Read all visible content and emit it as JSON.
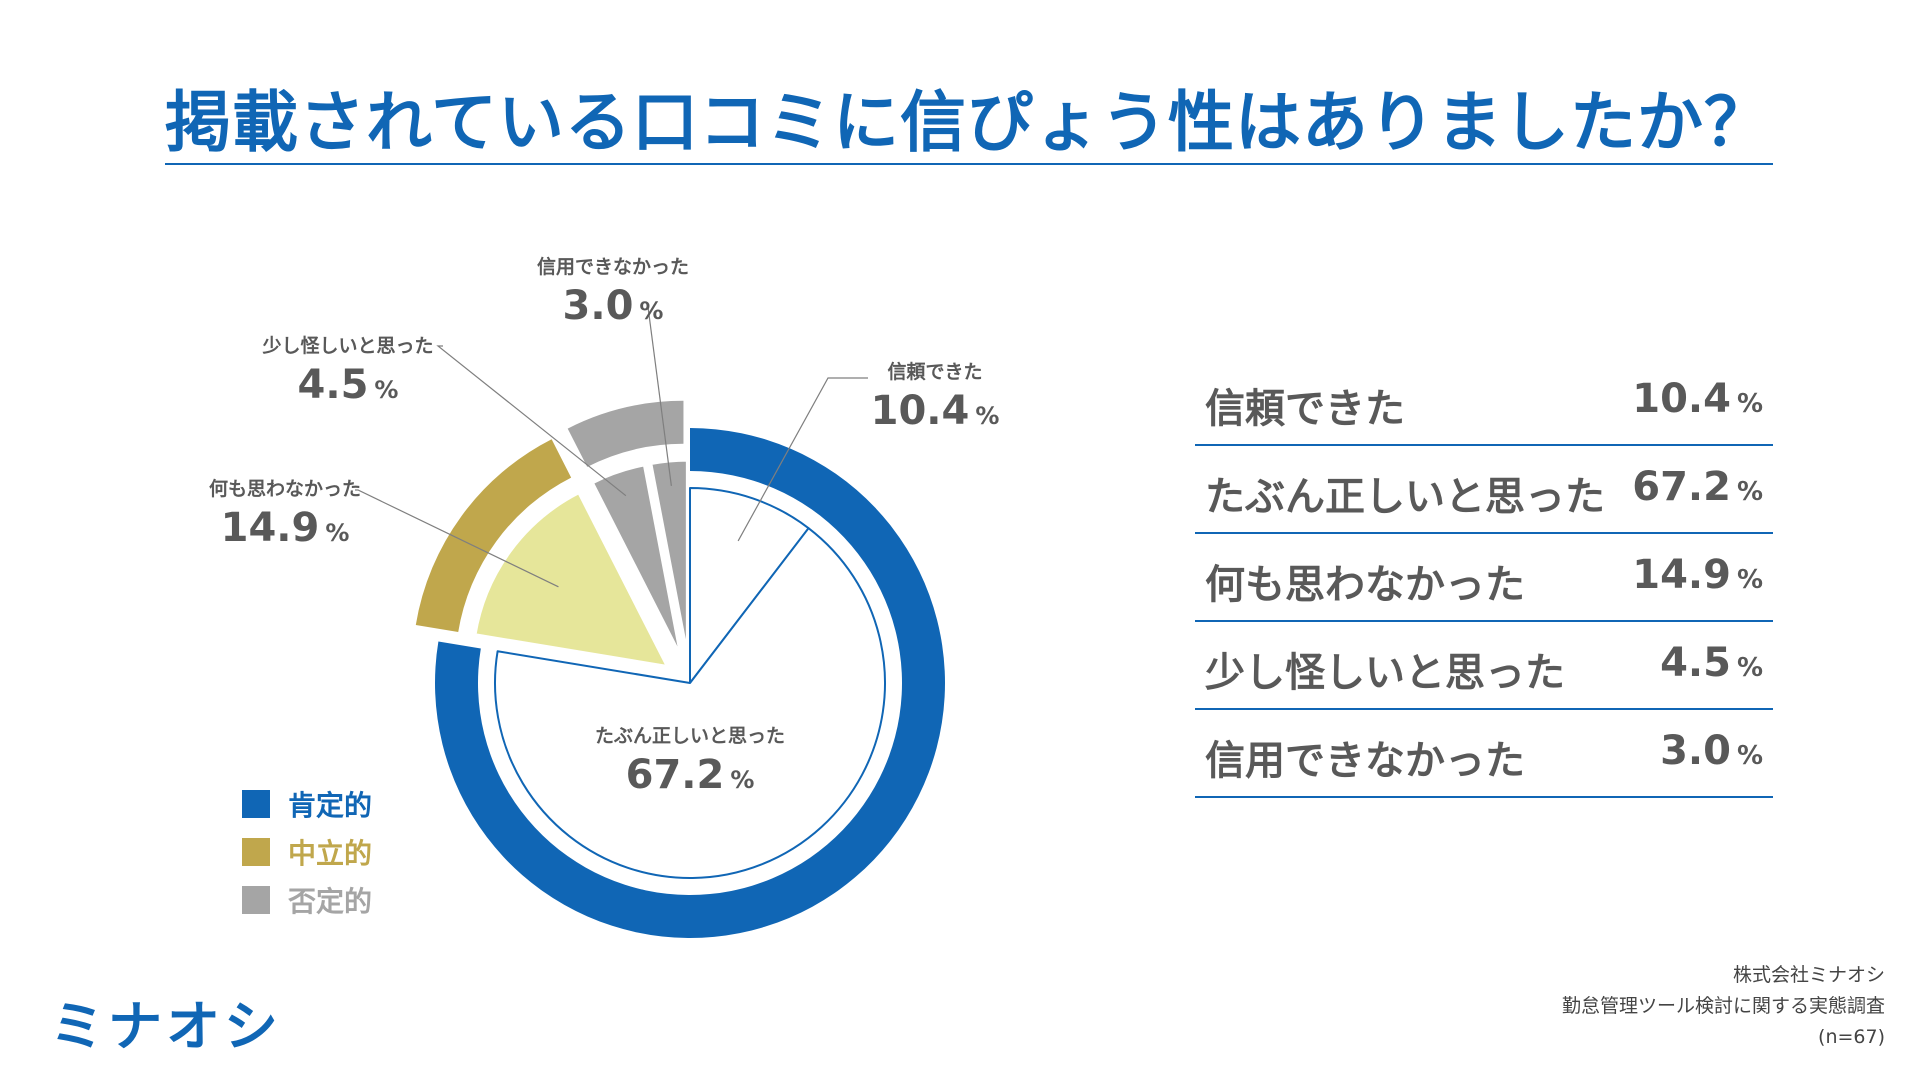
{
  "title": "掲載されている口コミに信ぴょう性はありましたか？",
  "chart_data": {
    "type": "pie",
    "slices": [
      {
        "label": "信頼できた",
        "value": 10.4,
        "group": "肯定的"
      },
      {
        "label": "たぶん正しいと思った",
        "value": 67.2,
        "group": "肯定的"
      },
      {
        "label": "何も思わなかった",
        "value": 14.9,
        "group": "中立的"
      },
      {
        "label": "少し怪しいと思った",
        "value": 4.5,
        "group": "否定的"
      },
      {
        "label": "信用できなかった",
        "value": 3.0,
        "group": "否定的"
      }
    ],
    "groups": [
      {
        "name": "肯定的",
        "color": "#1066b5"
      },
      {
        "name": "中立的",
        "color": "#c0a74c"
      },
      {
        "name": "否定的",
        "color": "#a5a5a5"
      }
    ],
    "slice_colors": [
      "#ffffff",
      "#ffffff",
      "#e6e69a",
      "#a5a5a5",
      "#a5a5a5"
    ],
    "unit": "%",
    "legend_position": "bottom-left"
  },
  "table": {
    "rows": [
      {
        "label": "信頼できた",
        "value": "10.4",
        "unit": "%"
      },
      {
        "label": "たぶん正しいと思った",
        "value": "67.2",
        "unit": "%"
      },
      {
        "label": "何も思わなかった",
        "value": "14.9",
        "unit": "%"
      },
      {
        "label": "少し怪しいと思った",
        "value": "4.5",
        "unit": "%"
      },
      {
        "label": "信用できなかった",
        "value": "3.0",
        "unit": "%"
      }
    ]
  },
  "logo": "ミナオシ",
  "source": {
    "company": "株式会社ミナオシ",
    "survey": "勤怠管理ツール検討に関する実態調査",
    "sample": "(n=67)"
  }
}
